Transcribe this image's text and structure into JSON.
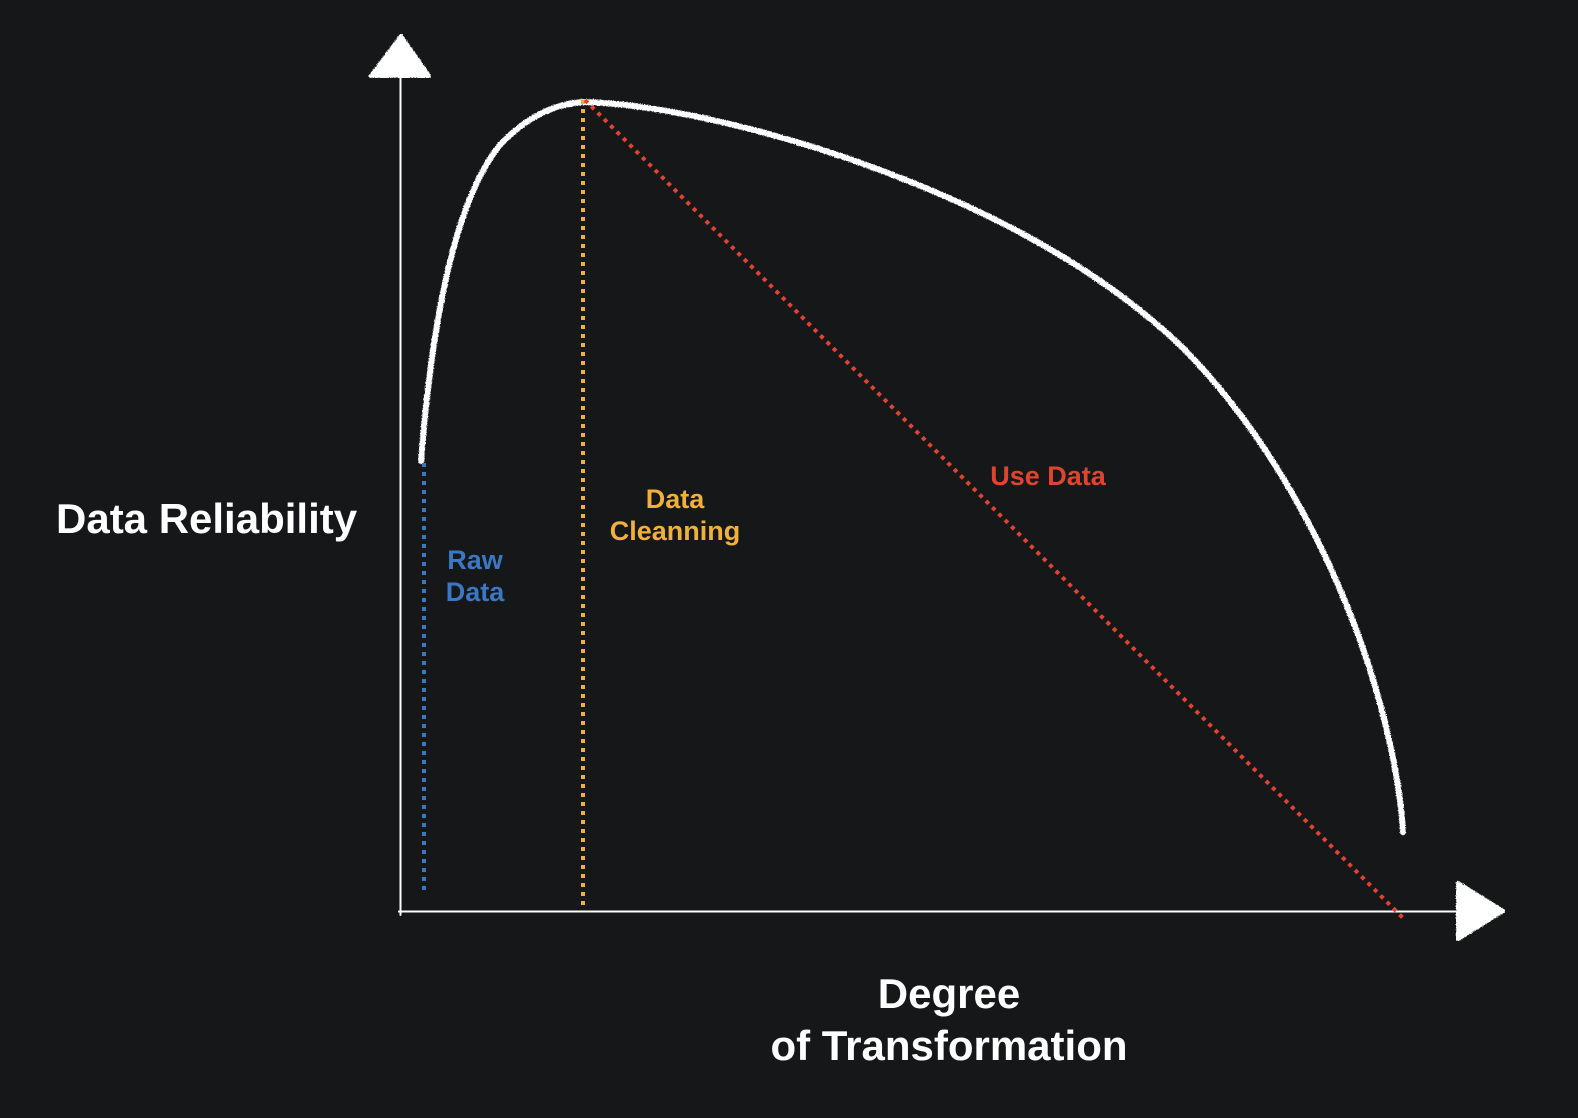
{
  "diagram": {
    "y_axis_label": "Data Reliability",
    "x_axis_label_lines": [
      "Degree",
      "of Transformation"
    ],
    "stages": [
      {
        "name": "raw",
        "lines": [
          "Raw",
          "Data"
        ],
        "color": "#3b78c4"
      },
      {
        "name": "cleaning",
        "lines": [
          "Data",
          "Cleanning"
        ],
        "color": "#f0b03a"
      },
      {
        "name": "use",
        "lines": [
          "Use Data"
        ],
        "color": "#e0442f"
      }
    ],
    "colors": {
      "background": "#161719",
      "chalk": "#ffffff"
    }
  }
}
